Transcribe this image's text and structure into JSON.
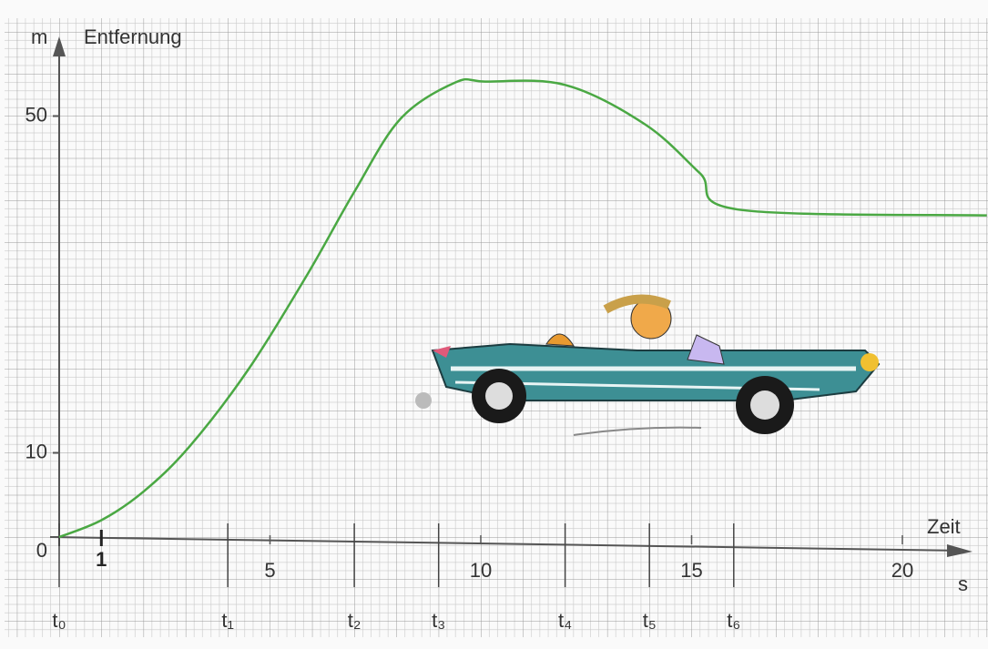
{
  "chart_data": {
    "type": "line",
    "y_axis_unit": "m",
    "y_axis_label": "Entfernung",
    "x_axis_label": "Zeit",
    "x_axis_unit": "s",
    "x": [
      0,
      1,
      2,
      3.1,
      4.5,
      5.9,
      7,
      8.1,
      9.4,
      10.1,
      12,
      13.9,
      15.2,
      16.1,
      22
    ],
    "series": [
      {
        "name": "Entfernung",
        "color": "#4aa843",
        "values": [
          0,
          2,
          5.4,
          10.8,
          20,
          31.3,
          41,
          49.7,
          54,
          54.1,
          53.7,
          49,
          43.2,
          38.9,
          38.2
        ]
      }
    ],
    "xlim": [
      0,
      22
    ],
    "ylim": [
      0,
      55
    ],
    "xticks": [
      5,
      10,
      15,
      20
    ],
    "yticks": [
      0,
      10,
      50
    ],
    "time_points": [
      {
        "value": 0,
        "label": "t₀"
      },
      {
        "value": 4,
        "label": "t₁"
      },
      {
        "value": 7,
        "label": "t₂"
      },
      {
        "value": 9,
        "label": "t₃"
      },
      {
        "value": 12,
        "label": "t₄"
      },
      {
        "value": 14,
        "label": "t₅"
      },
      {
        "value": 16,
        "label": "t₆"
      }
    ],
    "annotations": [
      {
        "x": 1,
        "text": "1"
      }
    ],
    "grid": true
  }
}
